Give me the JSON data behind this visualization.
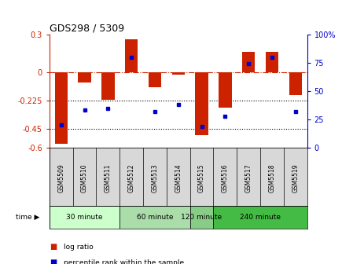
{
  "title": "GDS298 / 5309",
  "samples": [
    "GSM5509",
    "GSM5510",
    "GSM5511",
    "GSM5512",
    "GSM5513",
    "GSM5514",
    "GSM5515",
    "GSM5516",
    "GSM5517",
    "GSM5518",
    "GSM5519"
  ],
  "log_ratio": [
    -0.57,
    -0.08,
    -0.22,
    0.26,
    -0.12,
    -0.02,
    -0.5,
    -0.28,
    0.16,
    0.16,
    -0.18
  ],
  "percentile": [
    20,
    33,
    35,
    80,
    32,
    38,
    19,
    28,
    74,
    80,
    32
  ],
  "ylim_left": [
    -0.6,
    0.3
  ],
  "ylim_right": [
    0,
    100
  ],
  "yticks_left": [
    -0.6,
    -0.45,
    -0.225,
    0,
    0.3
  ],
  "ytick_labels_left": [
    "-0.6",
    "-0.45",
    "-0.225",
    "0",
    "0.3"
  ],
  "yticks_right": [
    0,
    25,
    50,
    75,
    100
  ],
  "ytick_labels_right": [
    "0",
    "25",
    "50",
    "75",
    "100%"
  ],
  "hlines_dotted": [
    -0.225,
    -0.45
  ],
  "hline_dash": 0,
  "bar_color": "#CC2200",
  "dot_color": "#0000CC",
  "bar_width": 0.55,
  "time_group_borders": [
    0,
    3,
    6,
    7,
    11
  ],
  "time_group_labels": [
    "30 minute",
    "60 minute",
    "120 minute",
    "240 minute"
  ],
  "time_group_colors": [
    "#ccffcc",
    "#aaddaa",
    "#88cc88",
    "#44bb44"
  ],
  "legend_log": "log ratio",
  "legend_pct": "percentile rank within the sample",
  "background_color": "#ffffff",
  "bar_color_left": "#CC2200",
  "bar_color_right": "#0000CC"
}
